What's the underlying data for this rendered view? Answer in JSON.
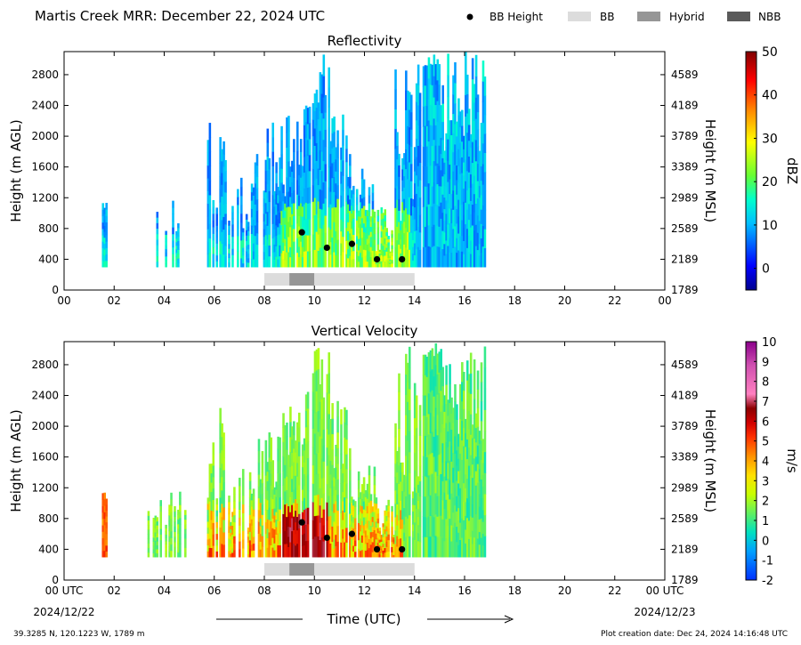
{
  "header": {
    "title": "Martis Creek MRR:  December 22, 2024 UTC",
    "legend": [
      {
        "label": "BB Height",
        "kind": "dot",
        "color": "#000000"
      },
      {
        "label": "BB",
        "kind": "box",
        "color": "#dcdcdc"
      },
      {
        "label": "Hybrid",
        "kind": "box",
        "color": "#969696"
      },
      {
        "label": "NBB",
        "kind": "box",
        "color": "#5a5a5a"
      }
    ]
  },
  "footer": {
    "coords": "39.3285 N, 120.1223 W, 1789 m",
    "created": "Plot creation date: Dec 24, 2024 14:16:48 UTC",
    "xaxis_title": "Time (UTC)",
    "start_date": "2024/12/22",
    "end_date": "2024/12/23"
  },
  "chart_data": [
    {
      "type": "heatmap",
      "title": "Reflectivity",
      "ylabel": "Height (m AGL)",
      "ylabel_right": "Height (m MSL)",
      "xlim": [
        0,
        24
      ],
      "ylim": [
        0,
        3100
      ],
      "xticks": [
        "00",
        "02",
        "04",
        "06",
        "08",
        "10",
        "12",
        "14",
        "16",
        "18",
        "20",
        "22",
        "00"
      ],
      "yticks": [
        0,
        400,
        800,
        1200,
        1600,
        2000,
        2400,
        2800
      ],
      "yticks_right": [
        "1789",
        "2189",
        "2589",
        "2989",
        "3389",
        "3789",
        "4189",
        "4589"
      ],
      "colorbar": {
        "label": "dBZ",
        "min": -5,
        "max": 50,
        "ticks": [
          0,
          10,
          20,
          30,
          40,
          50
        ]
      },
      "bb_heights": [
        [
          9.5,
          750
        ],
        [
          10.5,
          550
        ],
        [
          11.5,
          600
        ],
        [
          12.5,
          400
        ],
        [
          13.5,
          400
        ]
      ],
      "bb_bar": [
        {
          "start": 8,
          "end": 9,
          "kind": "BB"
        },
        {
          "start": 9,
          "end": 10,
          "kind": "Hybrid"
        },
        {
          "start": 10,
          "end": 14,
          "kind": "BB"
        }
      ]
    },
    {
      "type": "heatmap",
      "title": "Vertical Velocity",
      "ylabel": "Height (m AGL)",
      "ylabel_right": "Height (m MSL)",
      "xlim": [
        0,
        24
      ],
      "ylim": [
        0,
        3100
      ],
      "xticks": [
        "00 UTC",
        "02",
        "04",
        "06",
        "08",
        "10",
        "12",
        "14",
        "16",
        "18",
        "20",
        "22",
        "00 UTC"
      ],
      "yticks": [
        0,
        400,
        800,
        1200,
        1600,
        2000,
        2400,
        2800
      ],
      "yticks_right": [
        "1789",
        "2189",
        "2589",
        "2989",
        "3389",
        "3789",
        "4189",
        "4589"
      ],
      "colorbar": {
        "label": "m/s",
        "min": -2,
        "max": 10,
        "ticks": [
          -2,
          -1,
          0,
          1,
          2,
          3,
          4,
          5,
          6,
          7,
          8,
          9,
          10
        ]
      },
      "bb_heights": [
        [
          9.5,
          750
        ],
        [
          10.5,
          550
        ],
        [
          11.5,
          600
        ],
        [
          12.5,
          400
        ],
        [
          13.5,
          400
        ]
      ],
      "bb_bar": [
        {
          "start": 8,
          "end": 9,
          "kind": "BB"
        },
        {
          "start": 9,
          "end": 10,
          "kind": "Hybrid"
        },
        {
          "start": 10,
          "end": 14,
          "kind": "BB"
        }
      ]
    }
  ]
}
